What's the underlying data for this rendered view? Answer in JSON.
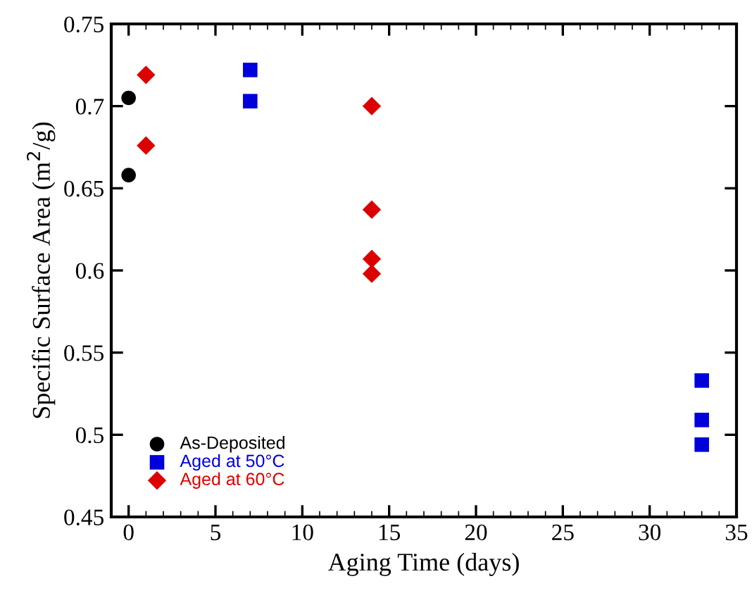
{
  "chart_data": {
    "type": "scatter",
    "xlabel": "Aging Time (days)",
    "ylabel": "Specific Surface Area (m$^{2}$/g)",
    "xlim": [
      -1,
      35
    ],
    "xticks": [
      0,
      5,
      10,
      15,
      20,
      25,
      30,
      35
    ],
    "ylim": [
      0.45,
      0.75
    ],
    "yticks": [
      0.45,
      0.5,
      0.55,
      0.6,
      0.65,
      0.7,
      0.75
    ],
    "grid": false,
    "legend": "bottom left",
    "series": [
      {
        "name": "As-Deposited",
        "color": "#000000",
        "marker": "circle",
        "x": [
          0,
          0
        ],
        "values": [
          0.705,
          0.658
        ]
      },
      {
        "name": "Aged at 50°C",
        "color": "#0000dd",
        "marker": "square",
        "x": [
          7,
          7,
          33,
          33,
          33
        ],
        "values": [
          0.722,
          0.703,
          0.533,
          0.509,
          0.494
        ]
      },
      {
        "name": "Aged at 60°C",
        "color": "#dd0000",
        "marker": "diamond",
        "x": [
          1,
          1,
          14,
          14,
          14,
          14
        ],
        "values": [
          0.719,
          0.676,
          0.7,
          0.637,
          0.607,
          0.598
        ]
      }
    ]
  }
}
